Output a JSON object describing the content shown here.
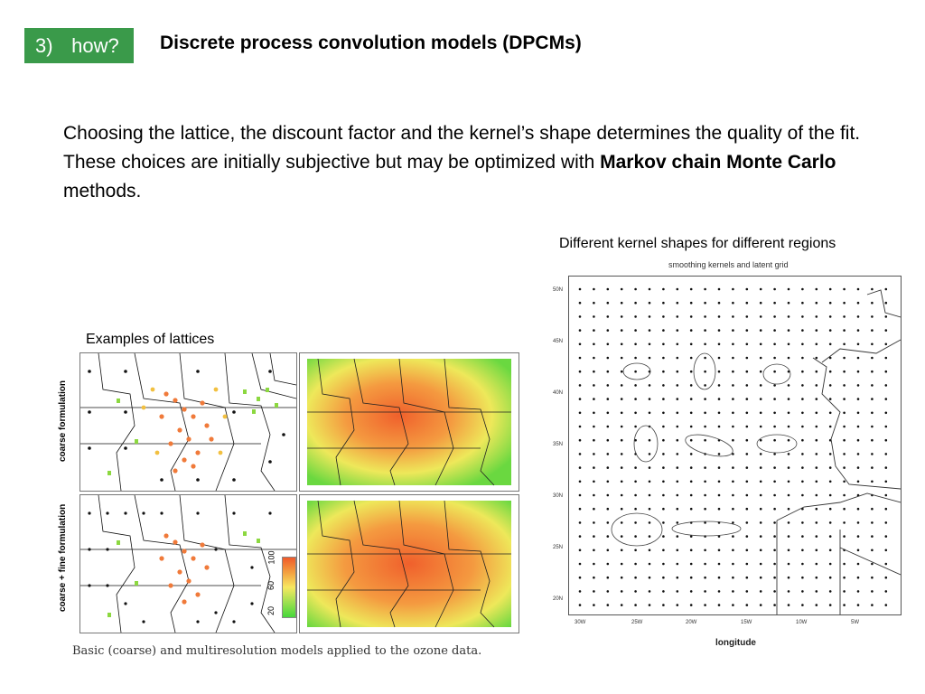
{
  "header": {
    "badge_number": "3)",
    "badge_word": "how?",
    "title": "Discrete process convolution models (DPCMs)"
  },
  "body": {
    "text_part1": "Choosing the lattice, the discount factor and the kernel’s shape determines the quality of the fit. These choices are initially subjective but may be optimized with ",
    "text_bold": "Markov chain Monte Carlo",
    "text_part2": " methods."
  },
  "captions": {
    "right": "Different kernel shapes for different regions",
    "left": "Examples of lattices",
    "figure": "Basic (coarse) and multiresolution models applied to the ozone data."
  },
  "left_figure": {
    "row1_label": "coarse formulation",
    "row2_label": "coarse + fine formulation",
    "colorbar_ticks": [
      "100",
      "60",
      "20"
    ]
  },
  "right_figure": {
    "title": "smoothing kernels and latent grid",
    "lat_ticks": [
      "50N",
      "45N",
      "40N",
      "35N",
      "30N",
      "25N",
      "20N"
    ],
    "lon_ticks": [
      "30W",
      "25W",
      "20W",
      "15W",
      "10W",
      "5W"
    ],
    "xlabel": "longitude"
  },
  "colors": {
    "badge": "#3a9a4a"
  }
}
